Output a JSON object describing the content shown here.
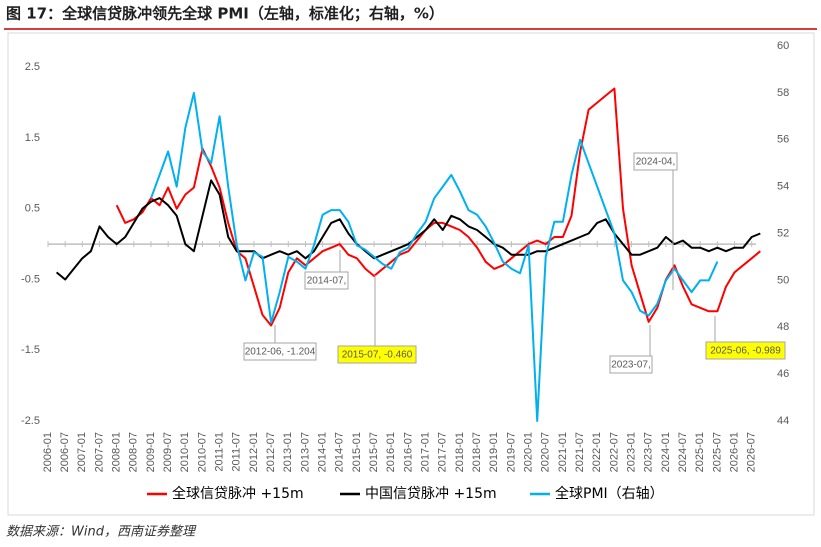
{
  "chart_data": {
    "type": "line",
    "title": "图 17：全球信贷脉冲领先全球 PMI（左轴，标准化；右轴，%）",
    "source": "数据来源：Wind，西南证券整理",
    "x": [
      "2006-01",
      "2006-04",
      "2006-07",
      "2006-10",
      "2007-01",
      "2007-04",
      "2007-07",
      "2007-10",
      "2008-01",
      "2008-04",
      "2008-07",
      "2008-10",
      "2009-01",
      "2009-04",
      "2009-07",
      "2009-10",
      "2010-01",
      "2010-04",
      "2010-07",
      "2010-10",
      "2011-01",
      "2011-04",
      "2011-07",
      "2011-10",
      "2012-01",
      "2012-04",
      "2012-07",
      "2012-10",
      "2013-01",
      "2013-04",
      "2013-07",
      "2013-10",
      "2014-01",
      "2014-04",
      "2014-07",
      "2014-10",
      "2015-01",
      "2015-04",
      "2015-07",
      "2015-10",
      "2016-01",
      "2016-04",
      "2016-07",
      "2016-10",
      "2017-01",
      "2017-04",
      "2017-07",
      "2017-10",
      "2018-01",
      "2018-04",
      "2018-07",
      "2018-10",
      "2019-01",
      "2019-04",
      "2019-07",
      "2019-10",
      "2020-01",
      "2020-04",
      "2020-07",
      "2020-10",
      "2021-01",
      "2021-04",
      "2021-07",
      "2021-10",
      "2022-01",
      "2022-04",
      "2022-07",
      "2022-10",
      "2023-01",
      "2023-04",
      "2023-07",
      "2023-10",
      "2024-01",
      "2024-04",
      "2024-07",
      "2024-10",
      "2025-01",
      "2025-04",
      "2025-07",
      "2025-10",
      "2026-01",
      "2026-04",
      "2026-07",
      "2026-10"
    ],
    "xlim": [
      "2006-01",
      "2026-12"
    ],
    "xticks": [
      "2006-01",
      "2006-07",
      "2007-01",
      "2007-07",
      "2008-01",
      "2008-07",
      "2009-01",
      "2009-07",
      "2010-01",
      "2010-07",
      "2011-01",
      "2011-07",
      "2012-01",
      "2012-07",
      "2013-01",
      "2013-07",
      "2014-01",
      "2014-07",
      "2015-01",
      "2015-07",
      "2016-01",
      "2016-07",
      "2017-01",
      "2017-07",
      "2018-01",
      "2018-07",
      "2019-01",
      "2019-07",
      "2020-01",
      "2020-07",
      "2021-01",
      "2021-07",
      "2022-01",
      "2022-07",
      "2023-01",
      "2023-07",
      "2024-01",
      "2024-07",
      "2025-01",
      "2025-07",
      "2026-01",
      "2026-07"
    ],
    "ylim": [
      -2.5,
      2.8
    ],
    "yticks": [
      -2.5,
      -1.5,
      -0.5,
      0.5,
      1.5,
      2.5
    ],
    "y2lim": [
      44,
      60
    ],
    "y2ticks": [
      44,
      46,
      48,
      50,
      52,
      54,
      56,
      58,
      60
    ],
    "series": [
      {
        "name": "全球信贷脉冲 +15m",
        "color": "#ff0000",
        "values": [
          null,
          null,
          null,
          null,
          null,
          null,
          null,
          null,
          0.55,
          0.3,
          0.35,
          0.45,
          0.65,
          0.55,
          0.8,
          0.5,
          0.7,
          0.8,
          1.35,
          1.1,
          0.8,
          0.3,
          -0.1,
          -0.2,
          -0.6,
          -1.0,
          -1.15,
          -0.9,
          -0.4,
          -0.2,
          -0.3,
          -0.2,
          -0.1,
          -0.05,
          0.0,
          -0.15,
          -0.2,
          -0.35,
          -0.45,
          -0.35,
          -0.25,
          -0.15,
          -0.1,
          0.05,
          0.2,
          0.3,
          0.3,
          0.25,
          0.2,
          0.1,
          -0.05,
          -0.25,
          -0.35,
          -0.3,
          -0.2,
          -0.1,
          0.0,
          0.05,
          0.0,
          0.1,
          0.1,
          0.4,
          1.3,
          1.9,
          2.0,
          2.1,
          2.2,
          0.5,
          -0.3,
          -0.7,
          -1.1,
          -0.9,
          -0.5,
          -0.3,
          -0.6,
          -0.85,
          -0.9,
          -0.95,
          -0.95,
          -0.6,
          -0.4,
          -0.3,
          -0.2,
          -0.1
        ]
      },
      {
        "name": "中国信贷脉冲 +15m",
        "color": "#000000",
        "values": [
          null,
          -0.4,
          -0.5,
          -0.35,
          -0.2,
          -0.1,
          0.25,
          0.1,
          0.0,
          0.1,
          0.3,
          0.5,
          0.6,
          0.65,
          0.55,
          0.4,
          0.0,
          -0.1,
          0.4,
          0.9,
          0.7,
          0.1,
          -0.1,
          -0.1,
          -0.1,
          -0.2,
          -0.15,
          -0.1,
          -0.15,
          -0.1,
          -0.2,
          -0.1,
          0.1,
          0.3,
          0.35,
          0.15,
          0.0,
          -0.1,
          -0.2,
          -0.15,
          -0.1,
          -0.05,
          0.0,
          0.1,
          0.2,
          0.35,
          0.2,
          0.4,
          0.35,
          0.25,
          0.2,
          0.1,
          0.0,
          -0.05,
          -0.15,
          -0.15,
          -0.15,
          -0.1,
          -0.1,
          -0.05,
          0.0,
          0.05,
          0.1,
          0.15,
          0.3,
          0.35,
          0.15,
          0.0,
          -0.15,
          -0.15,
          -0.1,
          -0.05,
          0.1,
          0.0,
          0.05,
          -0.05,
          -0.05,
          -0.1,
          -0.05,
          -0.1,
          -0.05,
          -0.05,
          0.1,
          0.15
        ]
      },
      {
        "name": "全球PMI（右轴）",
        "color": "#00b0f0",
        "axis": "y2",
        "values": [
          null,
          null,
          null,
          null,
          null,
          null,
          null,
          null,
          null,
          null,
          null,
          null,
          53.5,
          54.5,
          55.5,
          54.0,
          56.5,
          58.0,
          55.5,
          55.0,
          57.0,
          54.0,
          51.5,
          50.0,
          51.2,
          51.0,
          48.2,
          49.5,
          51.0,
          50.8,
          50.5,
          51.5,
          52.8,
          53.0,
          53.0,
          52.5,
          51.5,
          51.3,
          51.0,
          50.7,
          50.5,
          51.2,
          51.4,
          52.0,
          52.5,
          53.5,
          54.0,
          54.5,
          53.8,
          53.0,
          52.8,
          52.3,
          51.6,
          50.8,
          50.5,
          50.3,
          51.5,
          44.0,
          51.0,
          52.5,
          52.5,
          54.5,
          56.0,
          55.0,
          54.0,
          53.0,
          52.0,
          50.0,
          49.5,
          48.7,
          48.5,
          49.0,
          50.0,
          50.5,
          50.0,
          49.5,
          50.0,
          50.0,
          50.8,
          null,
          null,
          null,
          null,
          null
        ]
      }
    ],
    "annotations": [
      {
        "text": "2012-06, -1.204",
        "highlight": false
      },
      {
        "text": "2014-07,",
        "highlight": false
      },
      {
        "text": "2015-07, -0.460",
        "highlight": true
      },
      {
        "text": "2023-07,",
        "highlight": false
      },
      {
        "text": "2024-04,",
        "highlight": false
      },
      {
        "text": "2025-06, -0.989",
        "highlight": true
      }
    ]
  }
}
